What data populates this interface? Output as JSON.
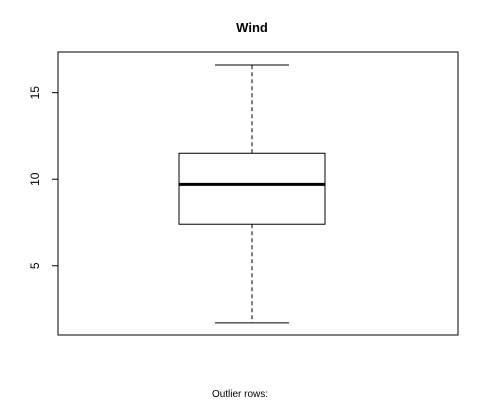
{
  "chart_data": {
    "type": "boxplot",
    "title": "Wind",
    "xlabel": "",
    "ylabel": "",
    "ylim": [
      1.0,
      17.35
    ],
    "yticks": [
      5,
      10,
      15
    ],
    "ytick_labels": [
      "5",
      "10",
      "15"
    ],
    "box": {
      "min": 1.7,
      "q1": 7.4,
      "median": 9.7,
      "q3": 11.5,
      "max": 16.6
    },
    "outliers": []
  },
  "footer": {
    "text": "Outlier rows:"
  }
}
